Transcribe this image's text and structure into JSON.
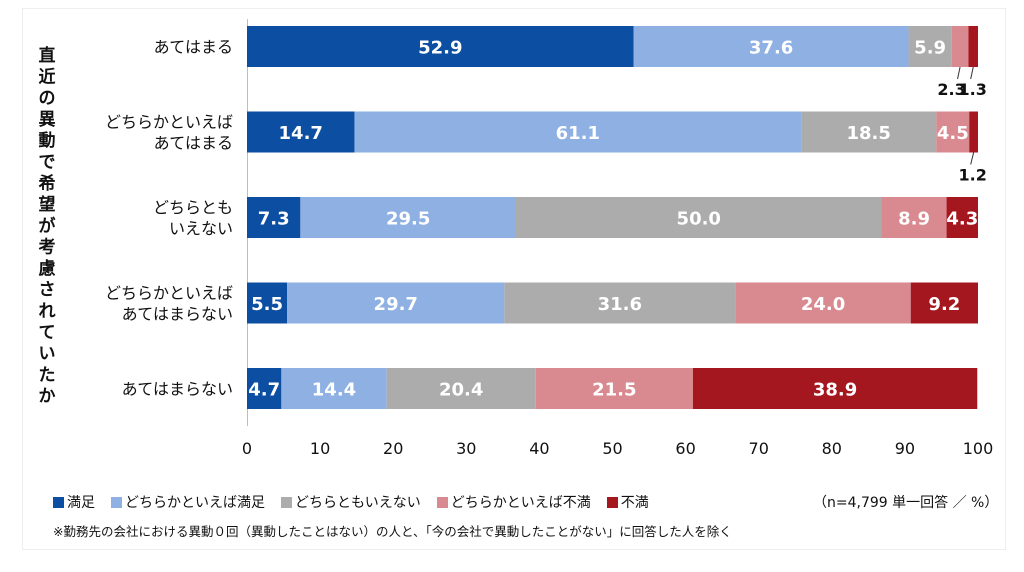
{
  "chart_data": {
    "type": "bar",
    "orientation": "horizontal",
    "stacked": true,
    "ylabel": "直近の異動で希望が考慮されていたか",
    "categories": [
      "あてはまる",
      "どちらかといえば\nあてはまる",
      "どちらとも\nいえない",
      "どちらかといえば\nあてはまらない",
      "あてはまらない"
    ],
    "series": [
      {
        "name": "満足",
        "color": "#0B4EA2",
        "values": [
          52.9,
          14.7,
          7.3,
          5.5,
          4.7
        ]
      },
      {
        "name": "どちらかといえば満足",
        "color": "#8EB0E3",
        "values": [
          37.6,
          61.1,
          29.5,
          29.7,
          14.4
        ]
      },
      {
        "name": "どちらともいえない",
        "color": "#ACACAC",
        "values": [
          5.9,
          18.5,
          50.0,
          31.6,
          20.4
        ]
      },
      {
        "name": "どちらかといえば不満",
        "color": "#D98A90",
        "values": [
          2.3,
          4.5,
          8.9,
          24.0,
          21.5
        ]
      },
      {
        "name": "不満",
        "color": "#A5171E",
        "values": [
          1.3,
          1.2,
          4.3,
          9.2,
          38.9
        ]
      }
    ],
    "xlim": [
      0,
      100
    ],
    "xticks": [
      0,
      10,
      20,
      30,
      40,
      50,
      60,
      70,
      80,
      90,
      100
    ],
    "grid": false,
    "legend_position": "bottom-left"
  },
  "unit_note": "（n=4,799 単一回答 ／ %）",
  "footnote": "※勤務先の会社における異動０回（異動したことはない）の人と、「今の会社で異動したことがない」に回答した人を除く"
}
